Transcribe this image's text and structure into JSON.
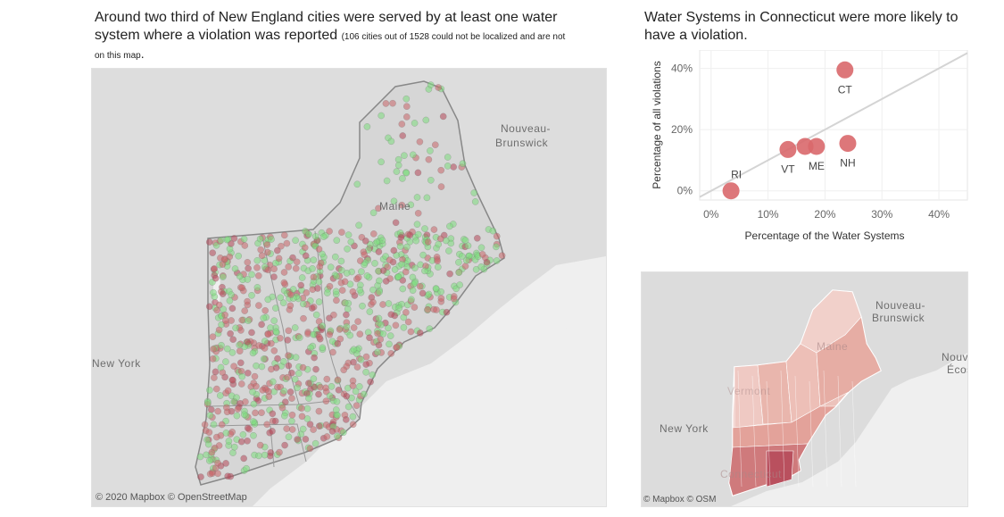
{
  "main_title": {
    "line1": "Around two third of New England cities were served by at least one water",
    "line2": "system where a violation was reported",
    "note_a": "(106 cities out of 1528 could not be localized and are not",
    "note_b": "on this map",
    "note_end": "."
  },
  "main_map": {
    "labels": {
      "nouveau": "Nouveau-",
      "brunswick": "Brunswick",
      "maine": "Maine",
      "new_york": "New York"
    },
    "credit": "© 2020 Mapbox  © OpenStreetMap",
    "colors": {
      "land": "#dddddd",
      "water": "#efefef",
      "no_violation": "#7ddc7d",
      "violation": "#c9666a"
    }
  },
  "scatter": {
    "title_line1": "Water Systems in Connecticut were more likely to",
    "title_line2": "have a violation."
  },
  "chart_data": {
    "type": "scatter",
    "xlabel": "Percentage of the Water Systems",
    "ylabel": "Percentage of all violations",
    "x_ticks": [
      "0%",
      "10%",
      "20%",
      "30%",
      "40%"
    ],
    "y_ticks": [
      "0%",
      "20%",
      "40%"
    ],
    "xlim": [
      -0.02,
      0.45
    ],
    "ylim": [
      -0.03,
      0.46
    ],
    "reference_line": "y = x",
    "marker_color": "#d9686b",
    "points": [
      {
        "label": "RI",
        "x": 0.035,
        "y": 0.0
      },
      {
        "label": "VT",
        "x": 0.135,
        "y": 0.135
      },
      {
        "label": "",
        "x": 0.165,
        "y": 0.145
      },
      {
        "label": "ME",
        "x": 0.185,
        "y": 0.145
      },
      {
        "label": "NH",
        "x": 0.24,
        "y": 0.155
      },
      {
        "label": "CT",
        "x": 0.235,
        "y": 0.395
      }
    ]
  },
  "mini_map": {
    "labels": {
      "nouveau": "Nouveau-",
      "brunswick": "Brunswick",
      "maine": "Maine",
      "new_york": "New York",
      "nouv": "Nouve",
      "ecos": "Écos",
      "vermont": "Vermont",
      "connecticut": "Connecticut"
    },
    "credit": "© Mapbox  © OSM"
  }
}
